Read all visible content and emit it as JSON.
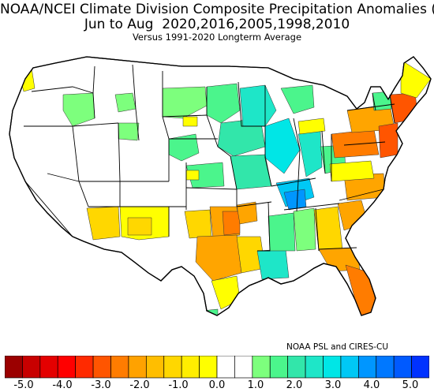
{
  "title": {
    "line1": "NOAA/NCEI Climate Division Composite Precipitation Anomalies (in)",
    "line2": "Jun to Aug  2020,2016,2005,1998,2010",
    "line3": "Versus 1991-2020 Longterm Average"
  },
  "credit": "NOAA PSL and CIRES-CU",
  "legend": {
    "colors": [
      "#9b0000",
      "#c80000",
      "#e40000",
      "#ff0000",
      "#ff2a00",
      "#ff5500",
      "#ff7c00",
      "#ffa200",
      "#ffbe00",
      "#ffd700",
      "#ffee00",
      "#ffff00",
      "#ffffff",
      "#ffffff",
      "#7dff7d",
      "#4bf58c",
      "#32e6aa",
      "#1ee6c8",
      "#00e6e6",
      "#00c8f5",
      "#0096ff",
      "#0078ff",
      "#005aff",
      "#0032ff"
    ],
    "tick_labels": [
      "-5.0",
      "-4.0",
      "-3.0",
      "-2.0",
      "-1.0",
      "0.0",
      "1.0",
      "2.0",
      "3.0",
      "4.0",
      "5.0"
    ]
  },
  "palette": {
    "white": "#ffffff",
    "yellow": "#ffff00",
    "gold": "#ffd700",
    "lorange": "#ffa500",
    "orange": "#ff7c00",
    "dorange": "#ff5500",
    "lgreen": "#7dff7d",
    "green": "#4bf58c",
    "teal": "#32e6aa",
    "cyan": "#1ee6c8",
    "aqua": "#00e6e6",
    "lblue": "#00c8f5",
    "blue": "#0096ff",
    "state_line": "#000000",
    "division_line": "#555555"
  }
}
